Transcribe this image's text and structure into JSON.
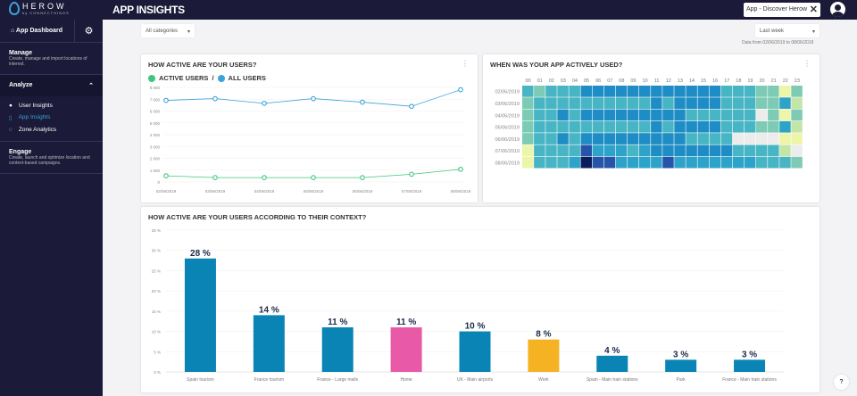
{
  "header": {
    "brand": "HEROW",
    "brand_sub": "by CONNECTHINGS",
    "title": "APP INSIGHTS",
    "app_selector": "App - Discover Herow",
    "close": "✕"
  },
  "sidebar": {
    "dashboard": "App Dashboard",
    "manage": {
      "title": "Manage",
      "desc": "Create, manage and import locations of interest."
    },
    "analyze": {
      "title": "Analyze",
      "items": [
        {
          "label": "User Insights",
          "active": false
        },
        {
          "label": "App Insights",
          "active": true
        },
        {
          "label": "Zone Analytics",
          "active": false
        }
      ]
    },
    "engage": {
      "title": "Engage",
      "desc": "Create, launch and optimize location and context-based campaigns."
    }
  },
  "filters": {
    "category": "All categories",
    "period": "Last week",
    "range": "Data from 02/06/2019 to 08/06/2019"
  },
  "help": "?",
  "colors": {
    "active": "#3ec77c",
    "all": "#3aa3d9",
    "bar": "#0a84b5",
    "home": "#e85aa7",
    "work": "#f5b324"
  },
  "line_card": {
    "title": "HOW ACTIVE ARE YOUR USERS?",
    "legend_active": "ACTIVE USERS",
    "legend_sep": "/",
    "legend_all": "ALL USERS"
  },
  "heat_card": {
    "title": "WHEN WAS YOUR APP ACTIVELY USED?"
  },
  "bar_card": {
    "title": "HOW ACTIVE ARE YOUR USERS ACCORDING TO THEIR CONTEXT?"
  },
  "chart_data": [
    {
      "type": "line",
      "title": "HOW ACTIVE ARE YOUR USERS?",
      "x": [
        "02/06/2019",
        "03/06/2019",
        "04/06/2019",
        "05/06/2019",
        "06/06/2019",
        "07/06/2019",
        "08/06/2019"
      ],
      "yticks": [
        "0",
        "1 000",
        "2 000",
        "3 000",
        "4 000",
        "5 000",
        "6 000",
        "7 000",
        "8 000"
      ],
      "ylim": [
        0,
        8000
      ],
      "series": [
        {
          "name": "ALL USERS",
          "values": [
            6900,
            7050,
            6650,
            7050,
            6750,
            6400,
            7800
          ]
        },
        {
          "name": "ACTIVE USERS",
          "values": [
            520,
            370,
            370,
            370,
            370,
            650,
            1070
          ]
        }
      ]
    },
    {
      "type": "heatmap",
      "title": "WHEN WAS YOUR APP ACTIVELY USED?",
      "x": [
        "00",
        "01",
        "02",
        "03",
        "04",
        "05",
        "06",
        "07",
        "08",
        "09",
        "10",
        "11",
        "12",
        "13",
        "14",
        "15",
        "16",
        "17",
        "18",
        "19",
        "20",
        "21",
        "22",
        "23"
      ],
      "y": [
        "02/06/2019",
        "03/06/2019",
        "04/06/2019",
        "05/06/2019",
        "06/06/2019",
        "07/06/2019",
        "08/06/2019"
      ],
      "values": [
        [
          4,
          3,
          4,
          4,
          4,
          6,
          6,
          6,
          6,
          6,
          6,
          6,
          6,
          6,
          6,
          6,
          6,
          4,
          4,
          4,
          3,
          3,
          1,
          3
        ],
        [
          3,
          4,
          4,
          4,
          4,
          4,
          4,
          4,
          4,
          4,
          4,
          6,
          4,
          6,
          6,
          6,
          6,
          4,
          4,
          4,
          3,
          3,
          5,
          2
        ],
        [
          3,
          4,
          4,
          6,
          4,
          6,
          6,
          6,
          6,
          6,
          6,
          6,
          6,
          6,
          4,
          4,
          4,
          4,
          4,
          4,
          0,
          3,
          1,
          3
        ],
        [
          3,
          4,
          4,
          4,
          4,
          4,
          4,
          4,
          4,
          4,
          4,
          6,
          4,
          6,
          6,
          6,
          6,
          4,
          4,
          4,
          3,
          3,
          5,
          2
        ],
        [
          3,
          4,
          4,
          6,
          4,
          6,
          6,
          6,
          6,
          6,
          6,
          6,
          6,
          6,
          4,
          4,
          4,
          4,
          0,
          0,
          0,
          0,
          1,
          1
        ],
        [
          1,
          4,
          4,
          4,
          4,
          7,
          5,
          5,
          5,
          4,
          5,
          6,
          6,
          6,
          6,
          6,
          6,
          6,
          4,
          4,
          4,
          4,
          2,
          0
        ],
        [
          1,
          4,
          4,
          4,
          5,
          8,
          7,
          7,
          5,
          5,
          5,
          5,
          7,
          5,
          5,
          5,
          5,
          5,
          5,
          5,
          4,
          4,
          4,
          3
        ]
      ]
    },
    {
      "type": "bar",
      "title": "HOW ACTIVE ARE YOUR USERS ACCORDING TO THEIR CONTEXT?",
      "categories": [
        "Spain tourism",
        "France tourism",
        "France - Large malls",
        "Home",
        "UK - Main airports",
        "Work",
        "Spain - Main train stations",
        "Park",
        "France - Main train stations"
      ],
      "values": [
        28,
        14,
        11,
        11,
        10,
        8,
        4,
        3,
        3
      ],
      "labels": [
        "28 %",
        "14 %",
        "11 %",
        "11 %",
        "10 %",
        "8 %",
        "4 %",
        "3 %",
        "3 %"
      ],
      "yticks": [
        "0 %",
        "5 %",
        "10 %",
        "15 %",
        "20 %",
        "25 %",
        "30 %",
        "35 %"
      ],
      "ylim": [
        0,
        35
      ]
    }
  ]
}
